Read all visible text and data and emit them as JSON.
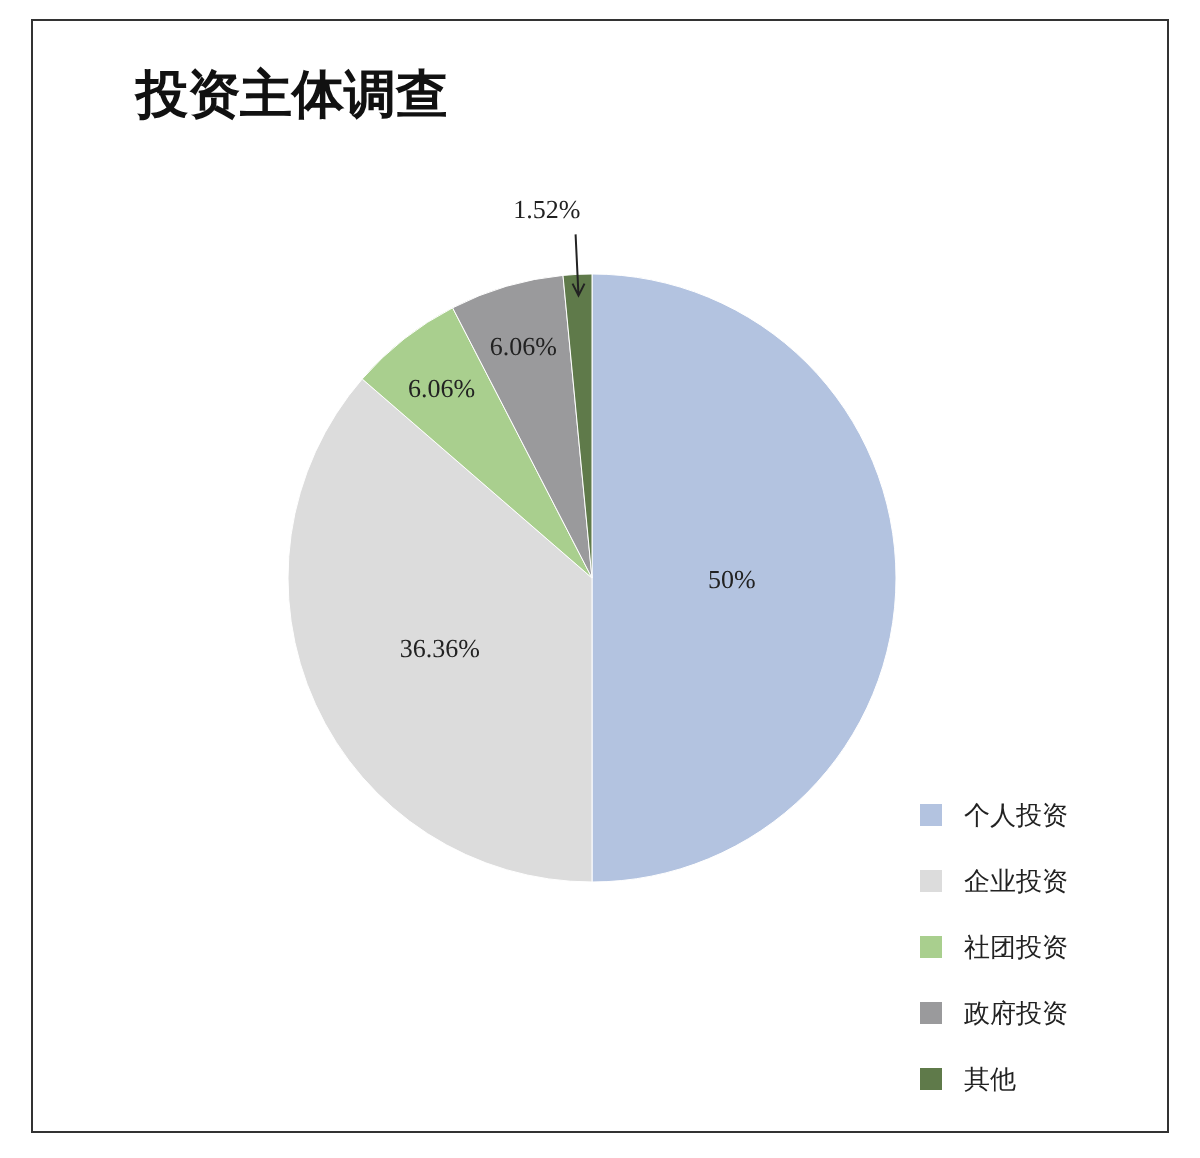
{
  "chart_data": {
    "type": "pie",
    "title": "投资主体调查",
    "categories": [
      "个人投资",
      "企业投资",
      "社团投资",
      "政府投资",
      "其他"
    ],
    "values": [
      50,
      36.36,
      6.06,
      6.06,
      1.52
    ],
    "value_labels": [
      "50%",
      "36.36%",
      "6.06%",
      "6.06%",
      "1.52%"
    ],
    "colors": [
      "#b3c3e0",
      "#dcdcdc",
      "#a9cf8e",
      "#9a9a9c",
      "#5f7a4a"
    ],
    "legend": "bottom right"
  }
}
